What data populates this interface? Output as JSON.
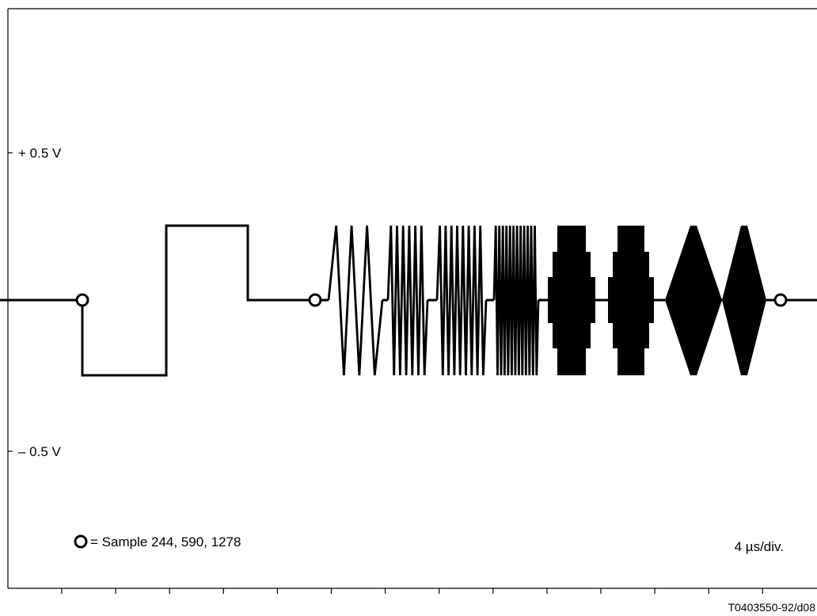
{
  "labels": {
    "plus_level": "+ 0.5 V",
    "minus_level": "– 0.5 V",
    "legend": "= Sample 244, 590, 1278",
    "timebase": "4 µs/div.",
    "figure_code": "T0403550-92/d08"
  },
  "colors": {
    "trace": "#000000",
    "frame": "#000000",
    "background": "#ffffff"
  },
  "waveform": {
    "sample_markers": [
      244,
      590,
      1278
    ],
    "segments": [
      {
        "kind": "baseline"
      },
      {
        "kind": "step",
        "level": "-"
      },
      {
        "kind": "step",
        "level": "+"
      },
      {
        "kind": "baseline"
      },
      {
        "kind": "burst",
        "cycles": 3
      },
      {
        "kind": "burst",
        "cycles": 6
      },
      {
        "kind": "burst",
        "cycles": 8
      },
      {
        "kind": "burst",
        "cycles": 12
      },
      {
        "kind": "block"
      },
      {
        "kind": "block"
      },
      {
        "kind": "diamond"
      },
      {
        "kind": "diamond"
      },
      {
        "kind": "baseline"
      }
    ]
  }
}
